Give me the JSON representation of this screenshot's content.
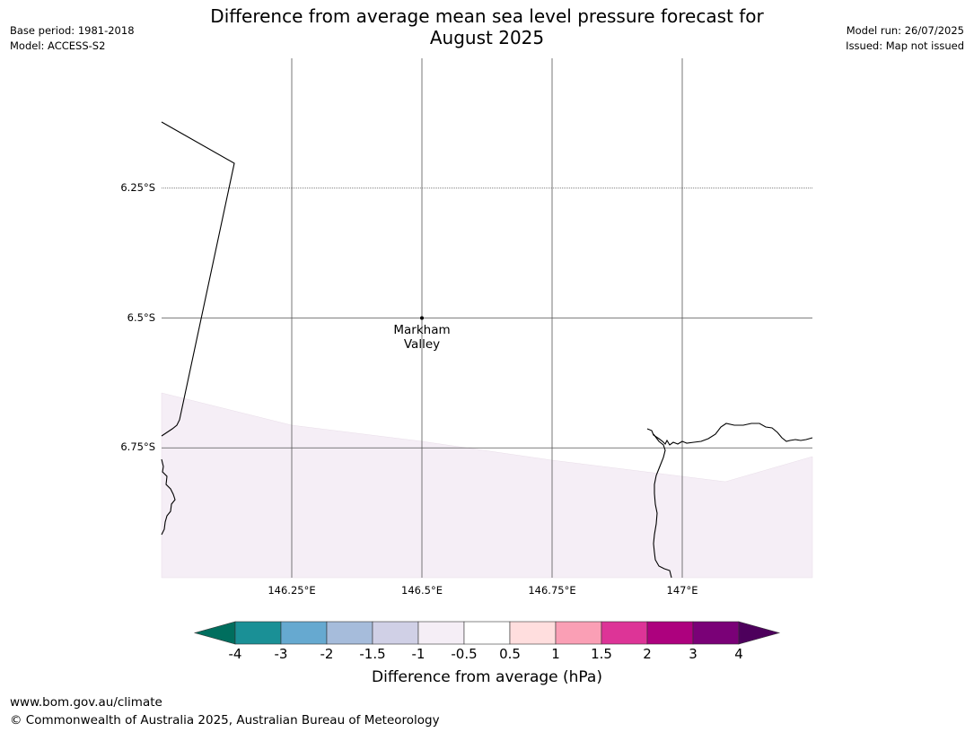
{
  "header": {
    "title_line1": "Difference from average mean sea level pressure forecast for",
    "title_line2": "August 2025",
    "base_period": "Base period: 1981-2018",
    "model": "Model: ACCESS-S2",
    "model_run": "Model run: 26/07/2025",
    "issued": "Issued: Map not issued"
  },
  "map": {
    "lat_labels": [
      {
        "value": -6.25,
        "label": "6.25°S"
      },
      {
        "value": -6.5,
        "label": "6.5°S"
      },
      {
        "value": -6.75,
        "label": "6.75°S"
      }
    ],
    "lon_labels": [
      {
        "value": 146.25,
        "label": "146.25°E"
      },
      {
        "value": 146.5,
        "label": "146.5°E"
      },
      {
        "value": 146.75,
        "label": "146.75°E"
      },
      {
        "value": 147.0,
        "label": "147°E"
      }
    ],
    "extent": {
      "lon_min": 146.0,
      "lon_max": 147.25,
      "lat_min": -7.0,
      "lat_max": -6.0
    },
    "place": {
      "name_line1": "Markham",
      "name_line2": "Valley",
      "lon": 146.5,
      "lat": -6.5
    },
    "shaded_category_color": "#f5eef6",
    "coastline_color": "#000000",
    "gridline_color": "#555555"
  },
  "colorbar": {
    "title": "Difference from average (hPa)",
    "ticks": [
      "-4",
      "-3",
      "-2",
      "-1.5",
      "-1",
      "-0.5",
      "0.5",
      "1",
      "1.5",
      "2",
      "3",
      "4"
    ],
    "under_color": "#006e5e",
    "over_color": "#4d005c",
    "colors": [
      "#1a9096",
      "#66a9d0",
      "#a6bcdb",
      "#d0d0e6",
      "#f5eef6",
      "#ffffff",
      "#ffdede",
      "#fa9fb5",
      "#dd3497",
      "#ad017e",
      "#7a0177"
    ]
  },
  "footer": {
    "url": "www.bom.gov.au/climate",
    "copyright": "© Commonwealth of Australia 2025, Australian Bureau of Meteorology"
  }
}
